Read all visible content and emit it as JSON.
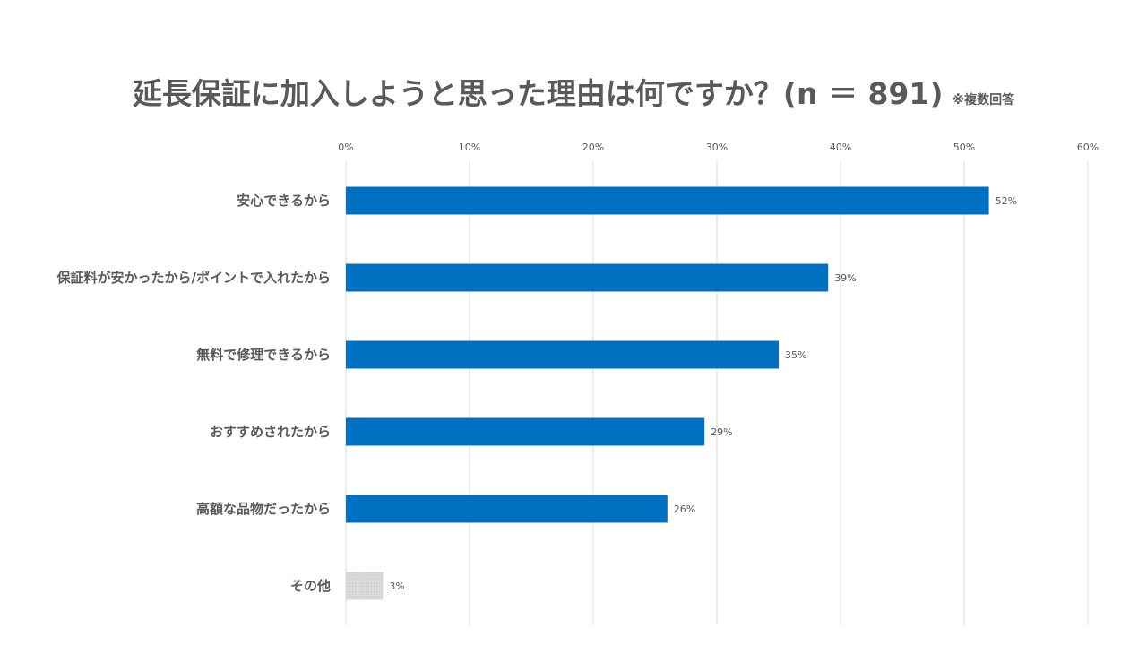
{
  "title": "延長保証に加入しようと思った理由は何ですか？(n ＝ 891)",
  "note": "※複数回答",
  "chart_data": {
    "type": "bar",
    "orientation": "horizontal",
    "title": "延長保証に加入しようと思った理由は何ですか？(n ＝ 891)",
    "categories": [
      "安心できるから",
      "保証料が安かったから/ポイントで入れたから",
      "無料で修理できるから",
      "おすすめされたから",
      "高額な品物だったから",
      "その他"
    ],
    "values": [
      52,
      39,
      35,
      29,
      26,
      3
    ],
    "data_labels": [
      "52%",
      "39%",
      "35%",
      "29%",
      "26%",
      "3%"
    ],
    "xlim": [
      0,
      60
    ],
    "x_ticks": [
      "0%",
      "10%",
      "20%",
      "30%",
      "40%",
      "50%",
      "60%"
    ],
    "grid": true,
    "tick_position": "top",
    "colors": {
      "primary": "#0070C0",
      "other": "#D9D9D9",
      "grid": "#D9D9D9",
      "text": "#595959"
    }
  }
}
